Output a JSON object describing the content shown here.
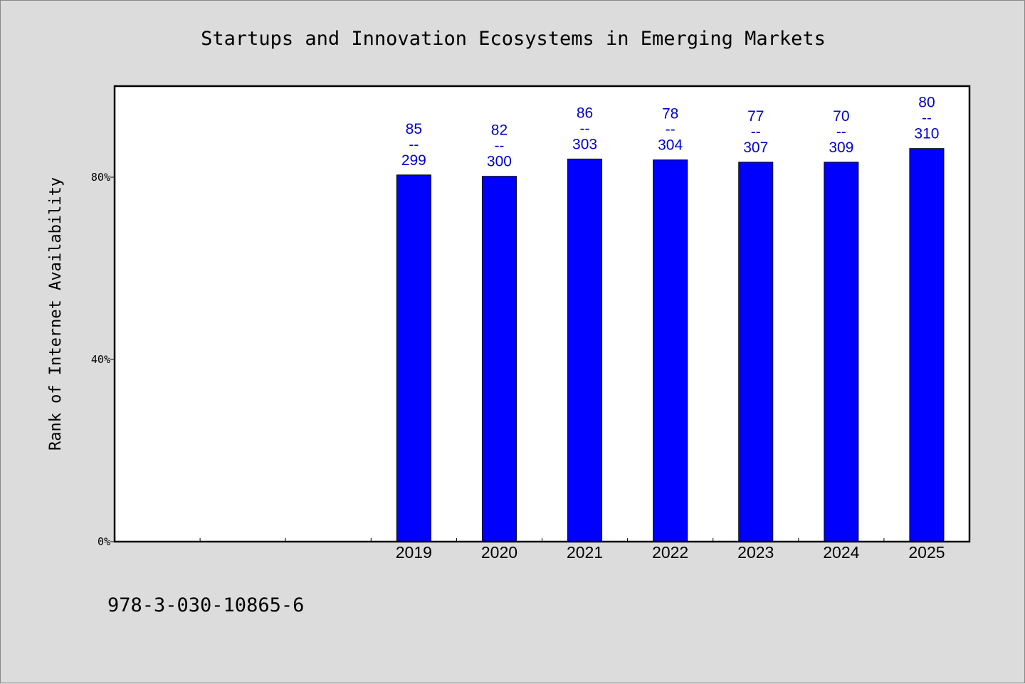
{
  "chart_data": {
    "type": "bar",
    "title": "Startups and Innovation Ecosystems in Emerging Markets",
    "xlabel": "",
    "ylabel": "Rank of Internet Availability",
    "categories": [
      "",
      "",
      "",
      "2019",
      "2020",
      "2021",
      "2022",
      "2023",
      "2024",
      "2025"
    ],
    "series": [
      {
        "values": [
          null,
          null,
          null,
          80.5,
          80.2,
          84.0,
          83.8,
          83.3,
          83.3,
          86.3
        ],
        "labels": [
          "",
          "",
          "",
          "85\n--\n299",
          "82\n--\n300",
          "86\n--\n303",
          "78\n--\n304",
          "77\n--\n307",
          "70\n--\n309",
          "80\n--\n310"
        ]
      }
    ],
    "yticks": [
      {
        "value": 0,
        "label": "0%"
      },
      {
        "value": 40,
        "label": "40%"
      },
      {
        "value": 80,
        "label": "80%"
      }
    ],
    "ylim": [
      0,
      100
    ],
    "grid": false,
    "bar_color": "#0000ff",
    "label_color": "#0000cc"
  },
  "footnote": "978-3-030-10865-6"
}
